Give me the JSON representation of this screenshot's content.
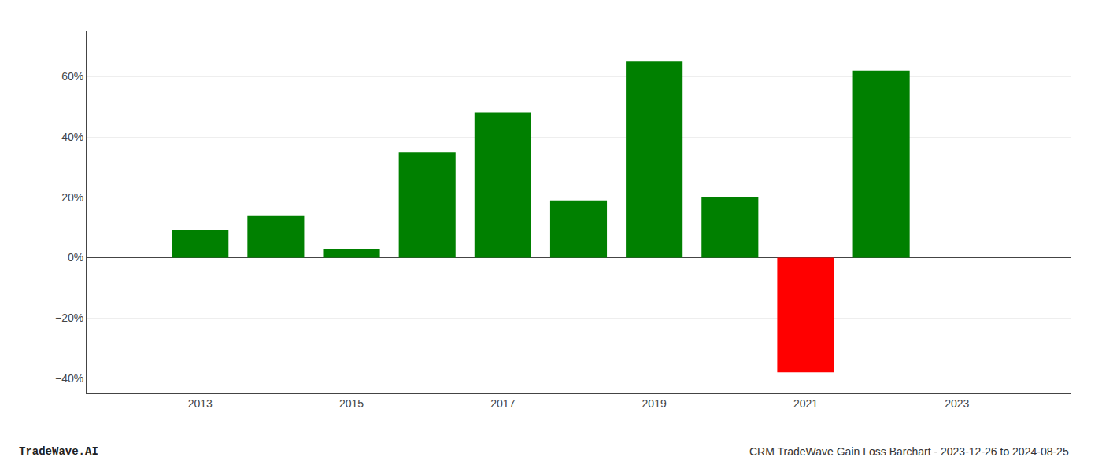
{
  "chart_data": {
    "type": "bar",
    "x": [
      2013,
      2014,
      2015,
      2016,
      2017,
      2018,
      2019,
      2020,
      2021,
      2022
    ],
    "values": [
      0.09,
      0.14,
      0.03,
      0.35,
      0.48,
      0.19,
      0.65,
      0.2,
      -0.38,
      0.62
    ],
    "colors": [
      "#008000",
      "#008000",
      "#008000",
      "#008000",
      "#008000",
      "#008000",
      "#008000",
      "#008000",
      "#ff0000",
      "#008000"
    ],
    "xlim": [
      2011.5,
      2024.5
    ],
    "xticks": [
      2013,
      2015,
      2017,
      2019,
      2021,
      2023
    ],
    "ylim": [
      -0.45,
      0.75
    ],
    "yticks": [
      {
        "value": -0.4,
        "label": "−40%"
      },
      {
        "value": -0.2,
        "label": "−20%"
      },
      {
        "value": 0.0,
        "label": "0%"
      },
      {
        "value": 0.2,
        "label": "20%"
      },
      {
        "value": 0.4,
        "label": "40%"
      },
      {
        "value": 0.6,
        "label": "60%"
      }
    ],
    "grid": true,
    "annotations": [
      "TradeWave.AI",
      "CRM TradeWave Gain Loss Barchart - 2023-12-26 to 2024-08-25"
    ]
  }
}
